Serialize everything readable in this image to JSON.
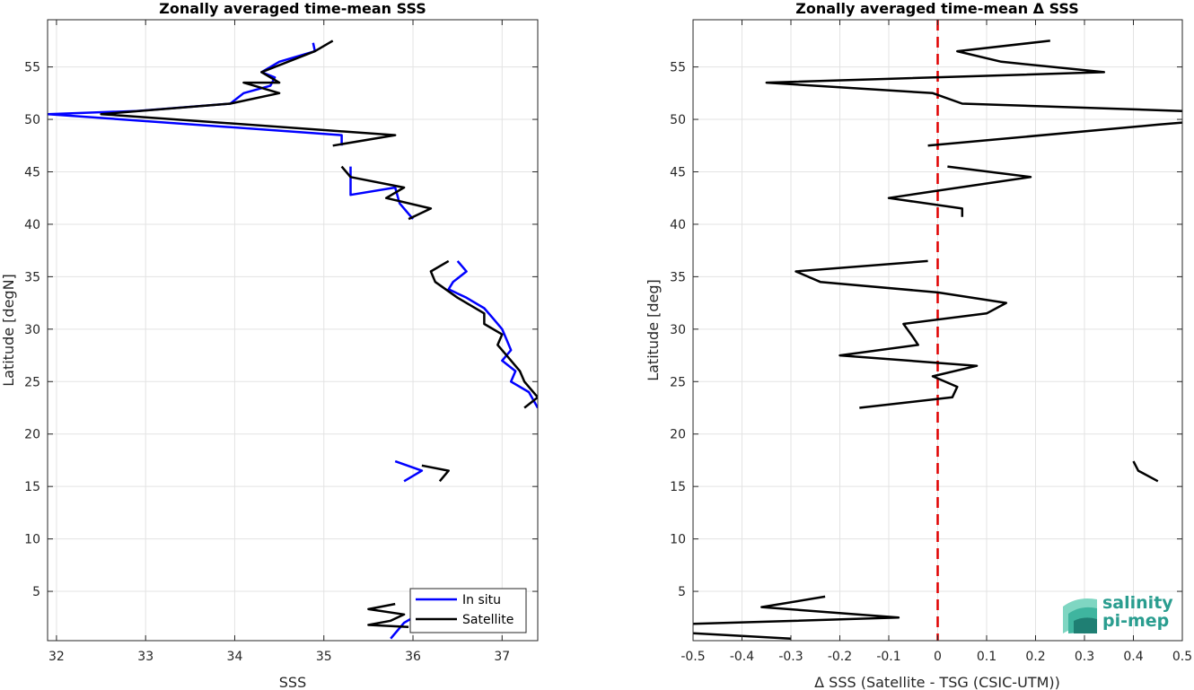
{
  "chart_data": [
    {
      "type": "line",
      "title": "Zonally averaged time-mean SSS",
      "xlabel": "SSS",
      "ylabel": "Latitude [degN]",
      "xlim": [
        31.9,
        37.4
      ],
      "ylim": [
        0.3,
        59.5
      ],
      "xticks": [
        32,
        33,
        34,
        35,
        36,
        37
      ],
      "yticks": [
        5,
        10,
        15,
        20,
        25,
        30,
        35,
        40,
        45,
        50,
        55
      ],
      "grid": true,
      "legend": {
        "position": "bottom-right",
        "entries": [
          "In situ",
          "Satellite"
        ]
      },
      "series": [
        {
          "name": "In situ",
          "color": "#0000ff",
          "segments": [
            [
              [
                34.88,
                57.3
              ],
              [
                34.9,
                56.5
              ],
              [
                34.5,
                55.5
              ],
              [
                34.3,
                54.5
              ],
              [
                34.45,
                54.0
              ],
              [
                34.4,
                53.2
              ],
              [
                34.1,
                52.5
              ],
              [
                33.95,
                51.5
              ],
              [
                32.9,
                50.8
              ],
              [
                31.9,
                50.5
              ],
              [
                35.2,
                48.5
              ],
              [
                35.2,
                47.5
              ]
            ],
            [
              [
                35.3,
                45.5
              ],
              [
                35.3,
                44.5
              ],
              [
                35.3,
                42.8
              ],
              [
                35.8,
                43.5
              ],
              [
                35.85,
                42.0
              ],
              [
                35.95,
                41.0
              ],
              [
                36.0,
                40.5
              ]
            ],
            [
              [
                36.5,
                36.5
              ],
              [
                36.6,
                35.5
              ],
              [
                36.45,
                34.5
              ],
              [
                36.4,
                33.8
              ],
              [
                36.6,
                33.0
              ],
              [
                36.8,
                32.0
              ],
              [
                36.9,
                31.0
              ],
              [
                37.0,
                30.0
              ],
              [
                37.05,
                29.0
              ],
              [
                37.1,
                28.0
              ],
              [
                37.0,
                27.0
              ],
              [
                37.15,
                26.0
              ],
              [
                37.1,
                25.0
              ],
              [
                37.3,
                24.0
              ],
              [
                37.4,
                22.5
              ]
            ],
            [
              [
                35.8,
                17.4
              ],
              [
                36.1,
                16.5
              ],
              [
                35.9,
                15.5
              ]
            ],
            [
              [
                36.0,
                2.5
              ],
              [
                35.9,
                2.0
              ],
              [
                35.75,
                0.5
              ]
            ]
          ]
        },
        {
          "name": "Satellite",
          "color": "#000000",
          "segments": [
            [
              [
                35.1,
                57.5
              ],
              [
                34.9,
                56.5
              ],
              [
                34.3,
                54.5
              ],
              [
                34.5,
                53.5
              ],
              [
                34.1,
                53.5
              ],
              [
                34.5,
                52.5
              ],
              [
                33.95,
                51.5
              ],
              [
                32.5,
                50.5
              ],
              [
                35.8,
                48.5
              ],
              [
                35.1,
                47.5
              ]
            ],
            [
              [
                35.2,
                45.5
              ],
              [
                35.3,
                44.5
              ],
              [
                35.9,
                43.5
              ],
              [
                35.7,
                42.5
              ],
              [
                36.2,
                41.5
              ],
              [
                35.95,
                40.5
              ]
            ],
            [
              [
                36.4,
                36.5
              ],
              [
                36.2,
                35.5
              ],
              [
                36.25,
                34.5
              ],
              [
                36.5,
                33.0
              ],
              [
                36.8,
                31.5
              ],
              [
                36.8,
                30.5
              ],
              [
                37.0,
                29.5
              ],
              [
                36.95,
                28.5
              ],
              [
                37.05,
                27.5
              ],
              [
                37.2,
                26.0
              ],
              [
                37.25,
                25.0
              ],
              [
                37.4,
                23.5
              ],
              [
                37.25,
                22.5
              ]
            ],
            [
              [
                36.1,
                17.0
              ],
              [
                36.4,
                16.5
              ],
              [
                36.3,
                15.5
              ]
            ],
            [
              [
                35.8,
                3.8
              ],
              [
                35.5,
                3.3
              ],
              [
                35.9,
                2.8
              ],
              [
                35.75,
                2.2
              ],
              [
                35.5,
                1.8
              ],
              [
                35.95,
                1.6
              ]
            ]
          ]
        }
      ]
    },
    {
      "type": "line",
      "title": "Zonally averaged time-mean Δ SSS",
      "xlabel": "Δ SSS (Satellite - TSG (CSIC-UTM))",
      "ylabel": "Latitude [deg]",
      "xlim": [
        -0.5,
        0.5
      ],
      "ylim": [
        0.3,
        59.5
      ],
      "xticks": [
        -0.5,
        -0.4,
        -0.3,
        -0.2,
        -0.1,
        0,
        0.1,
        0.2,
        0.3,
        0.4,
        0.5
      ],
      "xtick_labels": [
        "-0.5",
        "-0.4",
        "-0.3",
        "-0.2",
        "-0.1",
        "0",
        "0.1",
        "0.2",
        "0.3",
        "0.4",
        "0.5"
      ],
      "yticks": [
        5,
        10,
        15,
        20,
        25,
        30,
        35,
        40,
        45,
        50,
        55
      ],
      "grid": true,
      "zero_line": {
        "x": 0,
        "color": "#e00000",
        "style": "dashed"
      },
      "series": [
        {
          "color": "#000000",
          "segments": [
            [
              [
                0.23,
                57.5
              ],
              [
                0.04,
                56.5
              ],
              [
                0.13,
                55.5
              ],
              [
                0.34,
                54.5
              ],
              [
                -0.35,
                53.5
              ],
              [
                -0.01,
                52.5
              ],
              [
                0.05,
                51.5
              ],
              [
                0.5,
                50.8
              ]
            ],
            [
              [
                0.5,
                49.7
              ],
              [
                0.45,
                49.5
              ],
              [
                -0.02,
                47.5
              ]
            ],
            [
              [
                0.02,
                45.5
              ],
              [
                0.19,
                44.5
              ],
              [
                0.0,
                43.2
              ],
              [
                -0.1,
                42.5
              ],
              [
                0.05,
                41.5
              ],
              [
                0.05,
                40.7
              ]
            ],
            [
              [
                -0.02,
                36.5
              ],
              [
                -0.29,
                35.5
              ],
              [
                -0.24,
                34.5
              ],
              [
                0.0,
                33.5
              ],
              [
                0.14,
                32.5
              ],
              [
                0.1,
                31.5
              ],
              [
                -0.07,
                30.5
              ],
              [
                -0.05,
                29.2
              ],
              [
                -0.04,
                28.5
              ],
              [
                -0.2,
                27.5
              ],
              [
                0.08,
                26.5
              ],
              [
                -0.01,
                25.5
              ],
              [
                0.04,
                24.5
              ],
              [
                0.03,
                23.5
              ],
              [
                -0.16,
                22.5
              ]
            ],
            [
              [
                0.4,
                17.4
              ],
              [
                0.41,
                16.5
              ],
              [
                0.45,
                15.5
              ]
            ],
            [
              [
                -0.23,
                4.5
              ],
              [
                -0.36,
                3.5
              ],
              [
                -0.08,
                2.5
              ],
              [
                -0.5,
                1.9
              ]
            ],
            [
              [
                -0.5,
                1.0
              ],
              [
                -0.3,
                0.5
              ]
            ]
          ]
        }
      ]
    }
  ],
  "legend": {
    "in_situ_label": "In situ",
    "satellite_label": "Satellite"
  },
  "logo": {
    "line1": "salinity",
    "line2": "pi-mep",
    "color": "#2a9d8f"
  }
}
